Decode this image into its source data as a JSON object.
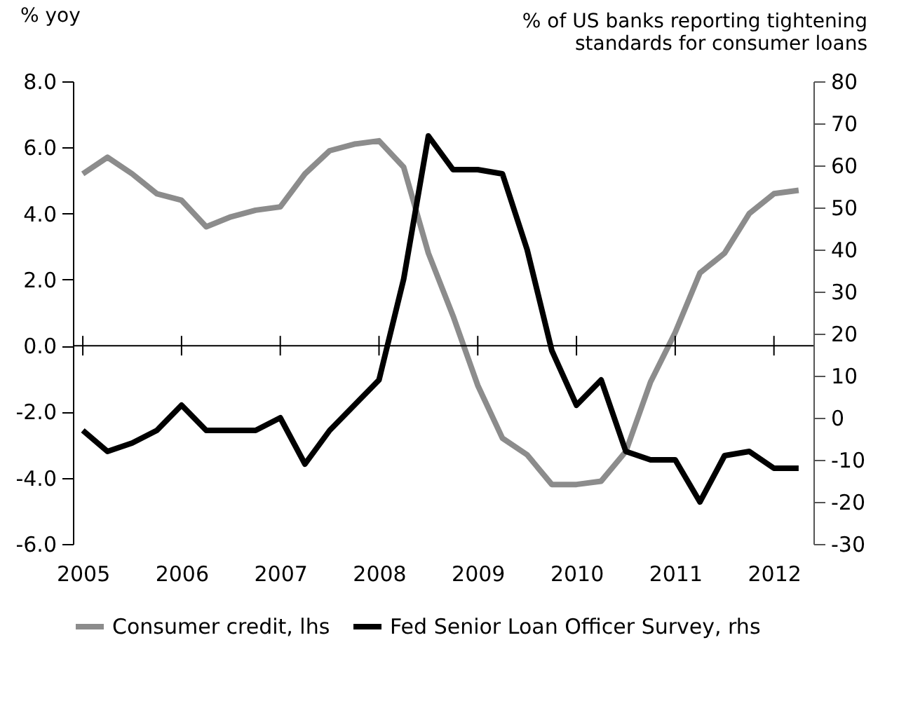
{
  "chart_data": {
    "type": "line",
    "ylabel": "% yoy",
    "y2label": "% of US banks reporting tightening\nstandards for consumer loans",
    "x": [
      2005,
      2005.25,
      2005.5,
      2005.75,
      2006,
      2006.25,
      2006.5,
      2006.75,
      2007,
      2007.25,
      2007.5,
      2007.75,
      2008,
      2008.25,
      2008.5,
      2008.75,
      2009,
      2009.25,
      2009.5,
      2009.75,
      2010,
      2010.25,
      2010.5,
      2010.75,
      2011,
      2011.25,
      2011.5,
      2011.75,
      2012,
      2012.25
    ],
    "series": [
      {
        "name": "Consumer credit, lhs",
        "color": "#8c8c8c",
        "axis": "y",
        "values": [
          5.2,
          5.7,
          5.2,
          4.6,
          4.4,
          3.6,
          3.9,
          4.1,
          4.2,
          5.2,
          5.9,
          6.1,
          6.2,
          5.4,
          2.8,
          0.9,
          -1.2,
          -2.8,
          -3.3,
          -4.2,
          -4.2,
          -4.1,
          -3.2,
          -1.1,
          0.4,
          2.2,
          2.8,
          4.0,
          4.6,
          4.7
        ]
      },
      {
        "name": "Fed Senior Loan Officer Survey, rhs",
        "color": "#000000",
        "axis": "y2",
        "values": [
          -3,
          -8,
          -6,
          -3,
          3,
          -3,
          -3,
          -3,
          0,
          -11,
          -3,
          3,
          9,
          33,
          67,
          59,
          59,
          58,
          40,
          16,
          3,
          9,
          -8,
          -10,
          -10,
          -20,
          -9,
          -8,
          -12,
          -12
        ]
      }
    ],
    "xlim": [
      2004.9,
      2012.4
    ],
    "xticks": [
      2005,
      2006,
      2007,
      2008,
      2009,
      2010,
      2011,
      2012
    ],
    "ylim": [
      -6,
      8
    ],
    "yticks": [
      {
        "value": -6,
        "label": "-6.0"
      },
      {
        "value": -4,
        "label": "-4.0"
      },
      {
        "value": -2,
        "label": "-2.0"
      },
      {
        "value": 0,
        "label": "0.0"
      },
      {
        "value": 2,
        "label": "2.0"
      },
      {
        "value": 4,
        "label": "4.0"
      },
      {
        "value": 6,
        "label": "6.0"
      },
      {
        "value": 8,
        "label": "8.0"
      }
    ],
    "y2lim": [
      -30,
      80
    ],
    "y2ticks": [
      -30,
      -20,
      -10,
      0,
      10,
      20,
      30,
      40,
      50,
      60,
      70,
      80
    ],
    "ref_lines": [
      {
        "axis": "y",
        "value": 0,
        "color": "#000000"
      }
    ],
    "grid": false,
    "legend": "bottom",
    "line_style": "solid",
    "marker": "none"
  }
}
